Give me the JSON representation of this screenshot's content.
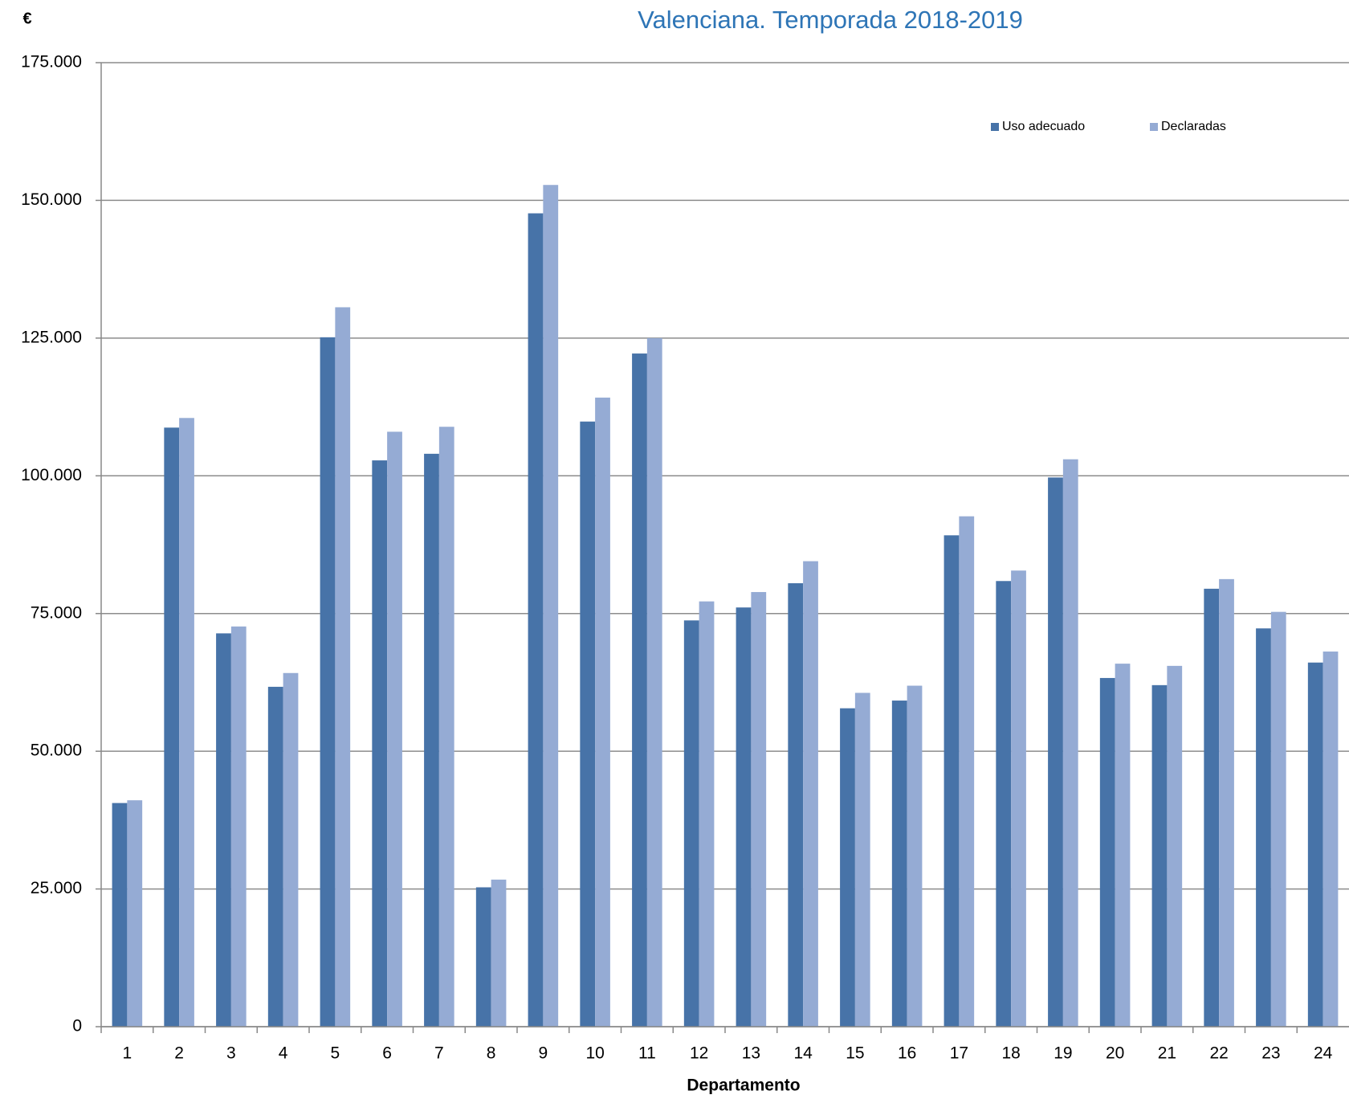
{
  "chart_data": {
    "type": "bar",
    "title": "Valenciana. Temporada 2018-2019",
    "y_label": "€",
    "x_label": "Departamento",
    "categories": [
      "1",
      "2",
      "3",
      "4",
      "5",
      "6",
      "7",
      "8",
      "9",
      "10",
      "11",
      "12",
      "13",
      "14",
      "15",
      "16",
      "17",
      "18",
      "19",
      "20",
      "21",
      "22",
      "23",
      "24"
    ],
    "series": [
      {
        "name": "Uso adecuado",
        "color": "#4773a8",
        "values": [
          40600,
          108750,
          71400,
          61700,
          125150,
          102800,
          104000,
          25300,
          147650,
          109850,
          122200,
          73750,
          76100,
          80500,
          57800,
          59200,
          89200,
          80900,
          99700,
          63300,
          62000,
          79500,
          72300,
          66100
        ]
      },
      {
        "name": "Declaradas",
        "color": "#95abd4",
        "values": [
          41100,
          110500,
          72650,
          64200,
          130600,
          108000,
          108900,
          26700,
          152800,
          114200,
          125000,
          77200,
          78900,
          84500,
          60600,
          61900,
          92650,
          82800,
          103000,
          65900,
          65500,
          81250,
          75300,
          68100
        ]
      }
    ],
    "ylim": [
      0,
      175000
    ],
    "yticks": [
      0,
      {
        "value": 25000,
        "label": "25.000"
      },
      {
        "value": 50000,
        "label": "50.000"
      },
      {
        "value": 75000,
        "label": "75.000"
      },
      {
        "value": 100000,
        "label": "100.000"
      },
      {
        "value": 125000,
        "label": "125.000"
      },
      {
        "value": 150000,
        "label": "150.000"
      },
      {
        "value": 175000,
        "label": "175.000"
      }
    ],
    "grid": true,
    "legend": "top-right"
  }
}
